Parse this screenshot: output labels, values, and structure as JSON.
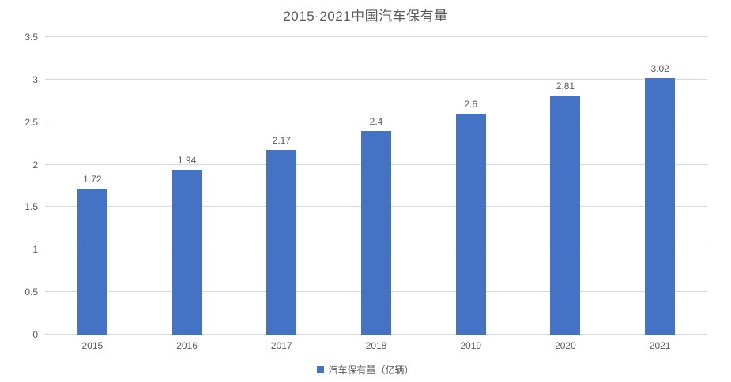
{
  "title": "2015-2021中国汽车保有量",
  "legend": {
    "label": "汽车保有量（亿辆）"
  },
  "colors": {
    "bar": "#4472c4",
    "text": "#595959",
    "gridline": "#d9d9d9",
    "background": "#ffffff"
  },
  "chart_data": {
    "type": "bar",
    "title": "2015-2021中国汽车保有量",
    "categories": [
      "2015",
      "2016",
      "2017",
      "2018",
      "2019",
      "2020",
      "2021"
    ],
    "values": [
      1.72,
      1.94,
      2.17,
      2.4,
      2.6,
      2.81,
      3.02
    ],
    "data_labels": [
      "1.72",
      "1.94",
      "2.17",
      "2.4",
      "2.6",
      "2.81",
      "3.02"
    ],
    "series_name": "汽车保有量（亿辆）",
    "xlabel": "",
    "ylabel": "",
    "ylim": [
      0,
      3.5
    ],
    "ytick_step": 0.5,
    "yticks": [
      "0",
      "0.5",
      "1",
      "1.5",
      "2",
      "2.5",
      "3",
      "3.5"
    ],
    "grid": true,
    "legend_position": "bottom"
  }
}
